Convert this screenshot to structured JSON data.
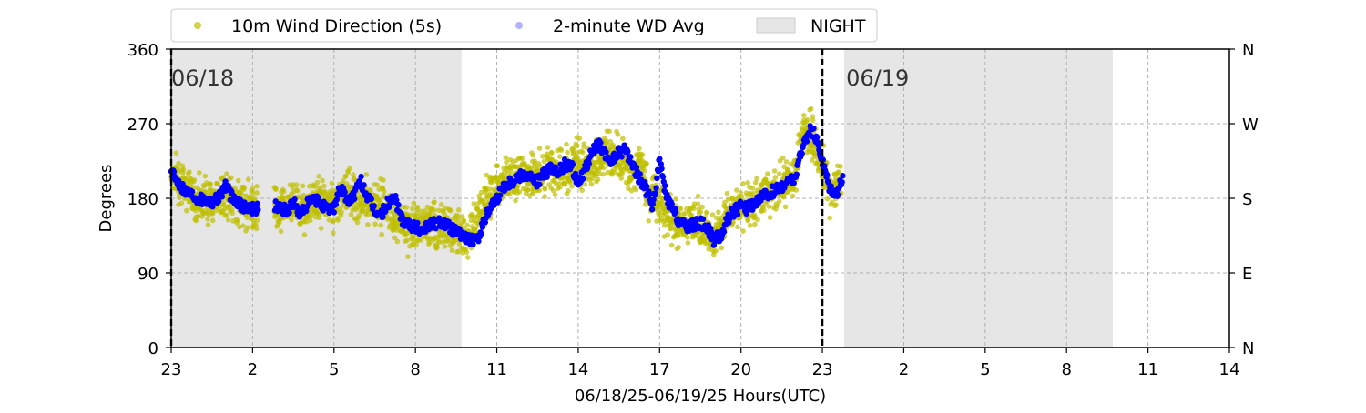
{
  "chart_data": {
    "type": "scatter",
    "title": "",
    "xlabel": "06/18/25-06/19/25  Hours(UTC)",
    "ylabel": "Degrees",
    "x_ticks": [
      "23",
      "2",
      "5",
      "8",
      "11",
      "14",
      "17",
      "20",
      "23",
      "2",
      "5",
      "8",
      "11",
      "14"
    ],
    "x_tick_hours": [
      0,
      3,
      6,
      9,
      12,
      15,
      18,
      21,
      24,
      27,
      30,
      33,
      36,
      39
    ],
    "xlim": [
      0,
      39
    ],
    "ylim": [
      0,
      360
    ],
    "y_ticks": [
      0,
      90,
      180,
      270,
      360
    ],
    "right_axis_ticks": [
      "N",
      "E",
      "S",
      "W",
      "N"
    ],
    "grid": true,
    "legend": {
      "placement": "top",
      "entries": [
        {
          "label": "10m Wind Direction (5s)",
          "marker": "dot",
          "color": "#bfbf00"
        },
        {
          "label": "2-minute WD Avg",
          "marker": "dot",
          "color": "#0000ff"
        },
        {
          "label": "NIGHT",
          "marker": "patch",
          "color": "#e6e6e6"
        }
      ]
    },
    "night_periods": [
      [
        0,
        10.7
      ],
      [
        24.8,
        34.7
      ]
    ],
    "day_markers": [
      {
        "x": 0,
        "label": "06/18"
      },
      {
        "x": 24,
        "label": "06/19"
      }
    ],
    "series": [
      {
        "name": "10m Wind Direction (5s)",
        "color": "#bfbf00",
        "spread": 20,
        "x": [
          0.0,
          0.5,
          1.0,
          1.5,
          2.0,
          2.5,
          3.0,
          4.0,
          4.5,
          5.0,
          5.5,
          6.0,
          6.5,
          7.0,
          7.5,
          8.0,
          8.5,
          9.0,
          9.5,
          10.0,
          10.5,
          11.0,
          11.3,
          11.6,
          12.0,
          12.3,
          12.6,
          13.0,
          13.5,
          14.0,
          14.5,
          15.0,
          15.5,
          16.0,
          16.5,
          17.0,
          17.3,
          17.6,
          18.0,
          18.5,
          19.0,
          19.5,
          20.0,
          20.5,
          21.0,
          21.5,
          22.0,
          22.5,
          23.0,
          23.3,
          23.6,
          24.0,
          24.3,
          24.7
        ],
        "y": [
          215,
          195,
          180,
          178,
          183,
          175,
          172,
          168,
          172,
          170,
          178,
          172,
          192,
          172,
          178,
          166,
          148,
          145,
          150,
          150,
          140,
          132,
          160,
          178,
          192,
          205,
          205,
          210,
          208,
          215,
          210,
          225,
          218,
          238,
          225,
          205,
          230,
          178,
          176,
          148,
          150,
          148,
          128,
          160,
          168,
          175,
          188,
          198,
          210,
          262,
          258,
          220,
          190,
          198
        ]
      },
      {
        "name": "2-minute WD Avg",
        "color": "#0000ff",
        "x": [
          0.0,
          0.25,
          0.5,
          0.75,
          1.0,
          1.25,
          1.5,
          1.75,
          2.0,
          2.25,
          2.5,
          2.75,
          3.0,
          4.0,
          4.25,
          4.5,
          4.75,
          5.0,
          5.25,
          5.5,
          5.75,
          6.0,
          6.25,
          6.5,
          6.75,
          7.0,
          7.25,
          7.5,
          7.75,
          8.0,
          8.25,
          8.5,
          8.75,
          9.0,
          9.25,
          9.5,
          9.75,
          10.0,
          10.25,
          10.5,
          10.75,
          11.0,
          11.25,
          11.5,
          11.75,
          12.0,
          12.25,
          12.5,
          12.75,
          13.0,
          13.25,
          13.5,
          13.75,
          14.0,
          14.25,
          14.5,
          14.75,
          15.0,
          15.25,
          15.5,
          15.75,
          16.0,
          16.25,
          16.5,
          16.75,
          17.0,
          17.25,
          17.5,
          17.75,
          18.0,
          18.25,
          18.5,
          18.75,
          19.0,
          19.25,
          19.5,
          19.75,
          20.0,
          20.25,
          20.5,
          20.75,
          21.0,
          21.25,
          21.5,
          21.75,
          22.0,
          22.25,
          22.5,
          22.75,
          23.0,
          23.25,
          23.5,
          23.75,
          24.0,
          24.25,
          24.5,
          24.75
        ],
        "y": [
          210,
          200,
          190,
          185,
          180,
          178,
          176,
          182,
          195,
          180,
          172,
          170,
          168,
          170,
          165,
          175,
          160,
          172,
          178,
          175,
          165,
          170,
          195,
          175,
          185,
          200,
          180,
          165,
          160,
          175,
          180,
          155,
          150,
          145,
          142,
          148,
          150,
          152,
          145,
          140,
          135,
          130,
          128,
          150,
          170,
          180,
          195,
          200,
          205,
          210,
          205,
          200,
          210,
          215,
          210,
          220,
          218,
          200,
          215,
          235,
          245,
          230,
          225,
          235,
          240,
          220,
          205,
          190,
          170,
          225,
          180,
          165,
          150,
          145,
          148,
          150,
          145,
          130,
          135,
          155,
          165,
          170,
          168,
          175,
          180,
          185,
          190,
          195,
          200,
          205,
          240,
          262,
          255,
          225,
          195,
          185,
          205
        ]
      }
    ]
  }
}
